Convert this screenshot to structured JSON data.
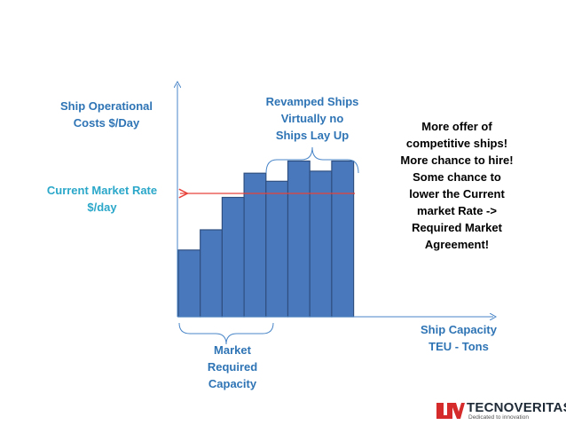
{
  "labels": {
    "y_axis": "Ship Operational\nCosts   $/Day",
    "current_rate": "Current Market Rate\n$/day",
    "revamped": "Revamped Ships\nVirtually no\nShips Lay Up",
    "offer": "More offer of\ncompetitive ships!\nMore chance to hire!\nSome chance to\nlower the Current\nmarket Rate ->\nRequired Market\nAgreement!",
    "x_axis": "Ship Capacity\n   TEU - Tons",
    "market_required": "Market\nRequired\nCapacity"
  },
  "bars": {
    "color": "#4a78bd",
    "stroke": "#2f4f80",
    "values": [
      0.33,
      0.43,
      0.59,
      0.71,
      0.67,
      0.77,
      0.72,
      0.77
    ]
  },
  "rate_line": {
    "color": "#e8413a",
    "level": 0.9
  },
  "logo": {
    "name": "TECNOVERITAS",
    "tagline": "Dedicated to innovation",
    "color": "#d62b2b"
  }
}
